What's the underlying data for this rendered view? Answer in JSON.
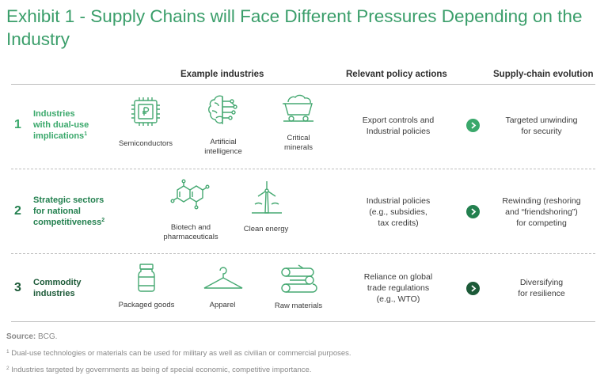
{
  "title": "Exhibit 1 - Supply Chains will Face Different Pressures Depending on the Industry",
  "headers": {
    "industries": "Example industries",
    "policy": "Relevant policy actions",
    "evolution": "Supply-chain evolution"
  },
  "rows": [
    {
      "number": "1",
      "category": "Industries with dual-use implications",
      "category_lines": [
        "Industries",
        "with dual-use",
        "implications"
      ],
      "footnote_ref": "1",
      "color": "#3aa86b",
      "industries": [
        {
          "icon": "microchip-icon",
          "label": "Semiconductors"
        },
        {
          "icon": "brain-circuit-icon",
          "label": "Artificial intelligence",
          "label_lines": [
            "Artificial",
            "intelligence"
          ]
        },
        {
          "icon": "mine-cart-icon",
          "label": "Critical minerals",
          "label_lines": [
            "Critical",
            "minerals"
          ]
        }
      ],
      "policy_lines": [
        "Export controls and",
        "Industrial policies"
      ],
      "evolution_lines": [
        "Targeted unwinding",
        "for security"
      ]
    },
    {
      "number": "2",
      "category": "Strategic sectors for national competitiveness",
      "category_lines": [
        "Strategic sectors",
        "for national",
        "competitiveness"
      ],
      "footnote_ref": "2",
      "color": "#23804f",
      "industries": [
        {
          "icon": "molecule-icon",
          "label": "Biotech and pharmaceuticals",
          "label_lines": [
            "Biotech and",
            "pharmaceuticals"
          ]
        },
        {
          "icon": "wind-turbine-icon",
          "label": "Clean energy"
        }
      ],
      "policy_lines": [
        "Industrial policies",
        "(e.g., subsidies,",
        "tax credits)"
      ],
      "evolution_lines": [
        "Rewinding (reshoring",
        "and “friendshoring”)",
        "for competing"
      ]
    },
    {
      "number": "3",
      "category": "Commodity industries",
      "category_lines": [
        "Commodity",
        "industries"
      ],
      "footnote_ref": "",
      "color": "#1c5a38",
      "industries": [
        {
          "icon": "jar-icon",
          "label": "Packaged goods"
        },
        {
          "icon": "hanger-icon",
          "label": "Apparel"
        },
        {
          "icon": "logs-icon",
          "label": "Raw materials"
        }
      ],
      "policy_lines": [
        "Reliance on global",
        "trade regulations",
        "(e.g., WTO)"
      ],
      "evolution_lines": [
        "Diversifying",
        "for resilience"
      ]
    }
  ],
  "source_label": "Source:",
  "source_text": "BCG.",
  "footnotes": [
    {
      "ref": "1",
      "text": "Dual-use technologies or materials can be used for military as well as civilian or commercial purposes."
    },
    {
      "ref": "2",
      "text": "Industries targeted by governments as being of special economic, competitive importance."
    }
  ],
  "colors": {
    "title": "#3a9e6a",
    "icon_stroke": "#46a972",
    "rule": "#bdbdbd",
    "muted_text": "#888888"
  }
}
